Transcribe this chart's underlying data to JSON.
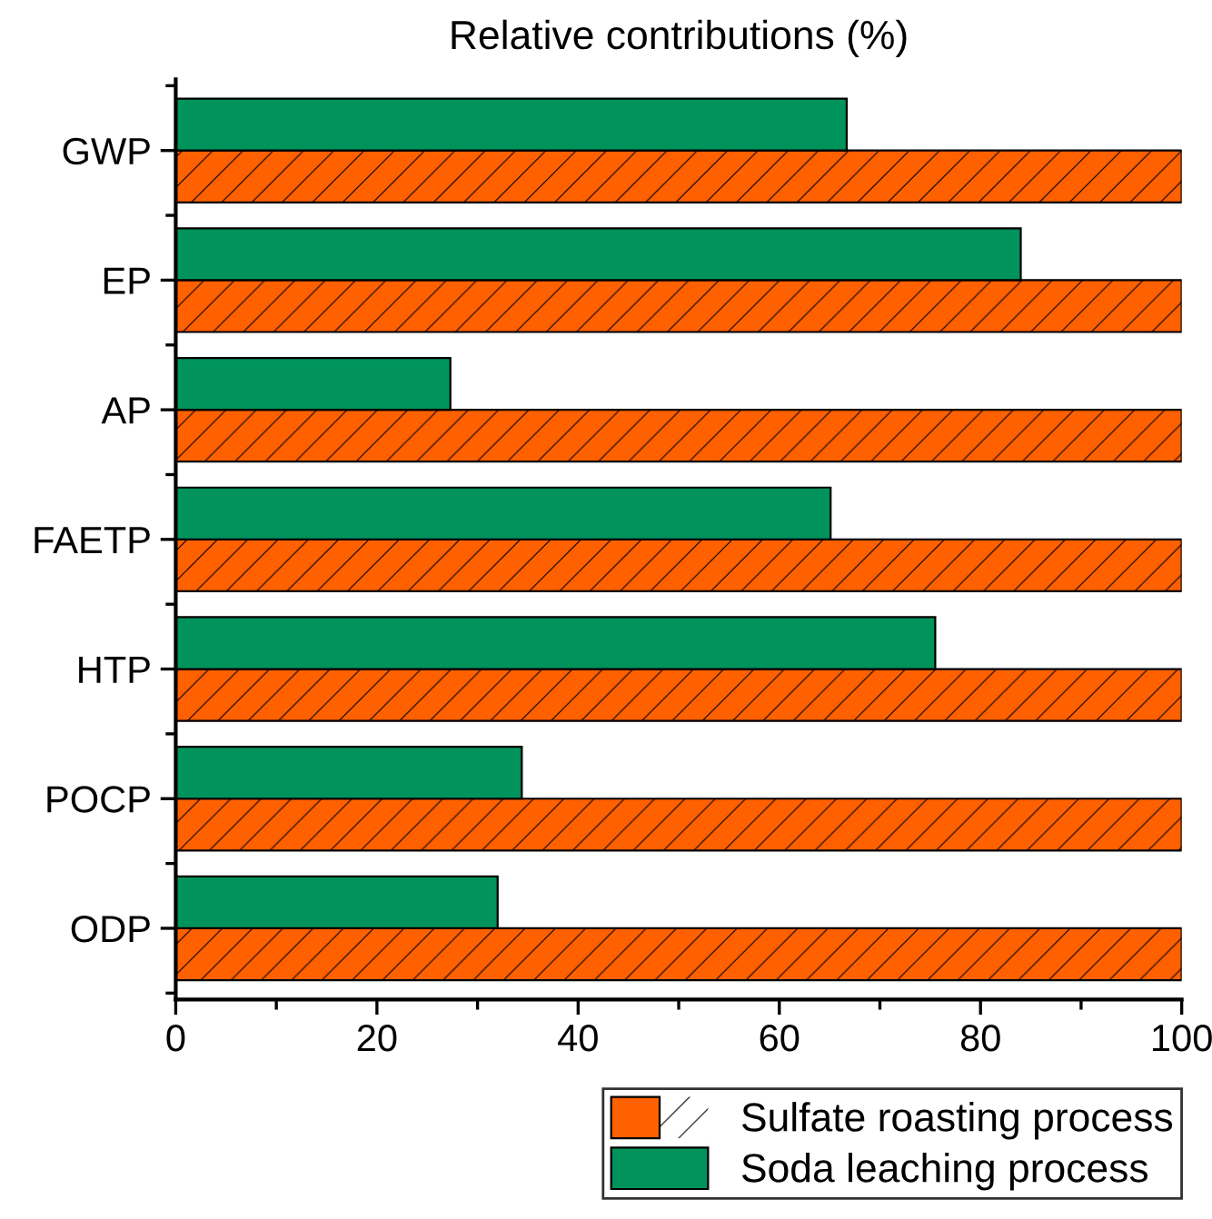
{
  "chart_data": {
    "type": "bar",
    "orientation": "horizontal",
    "title": "Relative contributions (%)",
    "categories": [
      "GWP",
      "EP",
      "AP",
      "FAETP",
      "HTP",
      "POCP",
      "ODP"
    ],
    "series": [
      {
        "name": "Sulfate roasting process",
        "color": "#ff6000",
        "values": [
          100,
          100,
          100,
          100,
          100,
          100,
          100
        ]
      },
      {
        "name": "Soda leaching process",
        "color": "#00935c",
        "values": [
          66.7,
          84.0,
          27.3,
          65.1,
          75.5,
          34.4,
          32.0
        ]
      }
    ],
    "xlim": [
      0,
      100
    ],
    "xticks": [
      0,
      20,
      40,
      60,
      80,
      100
    ],
    "grid": false,
    "legend": "bottom"
  }
}
